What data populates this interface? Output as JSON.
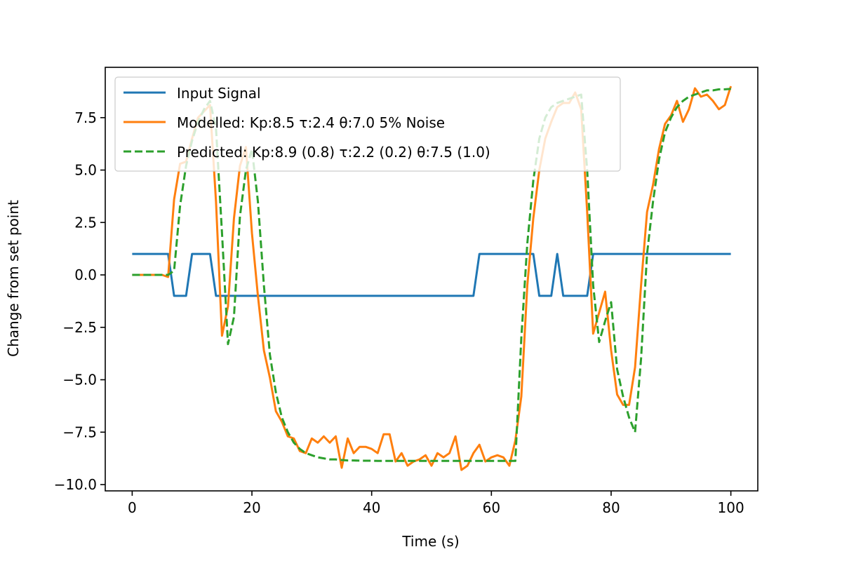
{
  "chart_data": {
    "type": "line",
    "title": "",
    "xlabel": "Time (s)",
    "ylabel": "Change from set point",
    "xlim": [
      -4.5,
      104.5
    ],
    "ylim": [
      -10.3,
      9.9
    ],
    "xticks": [
      0,
      20,
      40,
      60,
      80,
      100
    ],
    "yticks": [
      -10.0,
      -7.5,
      -5.0,
      -2.5,
      0.0,
      2.5,
      5.0,
      7.5
    ],
    "grid": false,
    "legend_position": "upper-left",
    "series": [
      {
        "name": "Input Signal",
        "color": "#1f77b4",
        "style": "solid",
        "x": [
          0,
          6,
          7,
          9,
          10,
          13,
          14,
          57,
          58,
          67,
          68,
          70,
          71,
          72,
          73,
          76,
          77,
          100
        ],
        "y": [
          1,
          1,
          -1,
          -1,
          1,
          1,
          -1,
          -1,
          1,
          1,
          -1,
          -1,
          1,
          -1,
          -1,
          -1,
          1,
          1
        ]
      },
      {
        "name": "Modelled: Kp:8.5 τ:2.4 θ:7.0  5% Noise",
        "color": "#ff7f0e",
        "style": "solid",
        "x": [
          0,
          1,
          2,
          3,
          4,
          5,
          6,
          7,
          8,
          9,
          10,
          11,
          12,
          13,
          14,
          15,
          16,
          17,
          18,
          19,
          20,
          21,
          22,
          23,
          24,
          25,
          26,
          27,
          28,
          29,
          30,
          31,
          32,
          33,
          34,
          35,
          36,
          37,
          38,
          39,
          40,
          41,
          42,
          43,
          44,
          45,
          46,
          47,
          48,
          49,
          50,
          51,
          52,
          53,
          54,
          55,
          56,
          57,
          58,
          59,
          60,
          61,
          62,
          63,
          64,
          65,
          66,
          67,
          68,
          69,
          70,
          71,
          72,
          73,
          74,
          75,
          76,
          77,
          78,
          79,
          80,
          81,
          82,
          83,
          84,
          85,
          86,
          87,
          88,
          89,
          90,
          91,
          92,
          93,
          94,
          95,
          96,
          97,
          98,
          99,
          100
        ],
        "y": [
          0,
          0,
          0,
          0,
          0,
          0,
          -0.1,
          3.6,
          5.3,
          5.4,
          6.5,
          7.5,
          7.8,
          8.1,
          3.5,
          -2.9,
          -1.5,
          2.7,
          5.2,
          6.1,
          2.0,
          -1.0,
          -3.6,
          -4.9,
          -6.5,
          -7.0,
          -7.7,
          -7.8,
          -8.4,
          -8.5,
          -7.8,
          -8.0,
          -7.7,
          -8.0,
          -7.7,
          -9.2,
          -7.8,
          -8.5,
          -8.2,
          -8.2,
          -8.3,
          -8.5,
          -7.6,
          -7.6,
          -8.9,
          -8.5,
          -9.1,
          -8.9,
          -8.8,
          -8.6,
          -9.1,
          -8.5,
          -8.7,
          -8.5,
          -7.7,
          -9.3,
          -9.1,
          -8.5,
          -8.1,
          -8.9,
          -8.7,
          -8.6,
          -8.7,
          -9.1,
          -7.9,
          -5.8,
          -0.5,
          2.7,
          5.0,
          6.5,
          7.3,
          8.0,
          8.2,
          8.2,
          8.7,
          7.9,
          3.0,
          -2.8,
          -1.8,
          -0.8,
          -3.6,
          -5.7,
          -6.2,
          -6.2,
          -4.4,
          -0.5,
          3.0,
          4.3,
          6.0,
          7.2,
          7.6,
          8.3,
          7.3,
          7.9,
          8.9,
          8.5,
          8.6,
          8.3,
          7.9,
          8.1,
          9.0
        ]
      },
      {
        "name": "Predicted: Kp:8.9 (0.8) τ:2.2 (0.2) θ:7.5 (1.0)",
        "color": "#2ca02c",
        "style": "dashed",
        "x": [
          0,
          1,
          2,
          3,
          4,
          5,
          6,
          7,
          8,
          9,
          10,
          11,
          12,
          13,
          14,
          15,
          16,
          17,
          18,
          19,
          20,
          21,
          22,
          23,
          24,
          25,
          26,
          27,
          28,
          29,
          30,
          31,
          32,
          33,
          34,
          35,
          36,
          37,
          38,
          39,
          40,
          41,
          42,
          43,
          44,
          45,
          46,
          47,
          48,
          49,
          50,
          51,
          52,
          53,
          54,
          55,
          56,
          57,
          58,
          59,
          60,
          61,
          62,
          63,
          64,
          65,
          66,
          67,
          68,
          69,
          70,
          71,
          72,
          73,
          74,
          75,
          76,
          77,
          78,
          79,
          80,
          81,
          82,
          83,
          84,
          85,
          86,
          87,
          88,
          89,
          90,
          91,
          92,
          93,
          94,
          95,
          96,
          97,
          98,
          99,
          100
        ],
        "y": [
          0,
          0,
          0,
          0,
          0,
          0,
          0,
          0.2,
          3.3,
          5.2,
          6.4,
          7.3,
          7.9,
          8.3,
          7.0,
          2.0,
          -3.3,
          -2.0,
          2.8,
          5.0,
          6.0,
          3.5,
          -0.5,
          -3.8,
          -5.6,
          -6.8,
          -7.5,
          -8.0,
          -8.3,
          -8.5,
          -8.6,
          -8.7,
          -8.75,
          -8.8,
          -8.8,
          -8.83,
          -8.85,
          -8.85,
          -8.86,
          -8.86,
          -8.86,
          -8.87,
          -8.87,
          -8.87,
          -8.87,
          -8.87,
          -8.87,
          -8.87,
          -8.87,
          -8.87,
          -8.87,
          -8.87,
          -8.87,
          -8.87,
          -8.87,
          -8.87,
          -8.87,
          -8.87,
          -8.87,
          -8.87,
          -8.87,
          -8.87,
          -8.87,
          -8.87,
          -8.87,
          -3.0,
          1.5,
          4.5,
          6.5,
          7.5,
          8.0,
          8.2,
          8.3,
          8.4,
          8.5,
          8.6,
          5.0,
          -0.5,
          -3.2,
          -2.2,
          -1.3,
          -4.5,
          -5.8,
          -6.8,
          -7.5,
          -4.0,
          1.0,
          3.5,
          5.5,
          6.8,
          7.5,
          8.0,
          8.3,
          8.5,
          8.6,
          8.7,
          8.8,
          8.8,
          8.85,
          8.85,
          8.87
        ]
      }
    ]
  }
}
